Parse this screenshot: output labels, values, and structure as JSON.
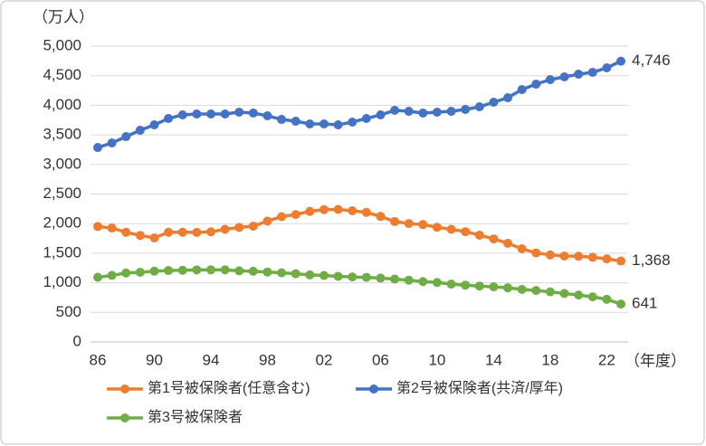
{
  "chart_data": {
    "type": "line",
    "y_axis_label": "（万人）",
    "x_axis_label": "（年度）",
    "categories": [
      "86",
      null,
      null,
      null,
      "90",
      null,
      null,
      null,
      "94",
      null,
      null,
      null,
      "98",
      null,
      null,
      null,
      "02",
      null,
      null,
      null,
      "06",
      null,
      null,
      null,
      "10",
      null,
      null,
      null,
      "14",
      null,
      null,
      null,
      "18",
      null,
      null,
      null,
      "22",
      null
    ],
    "series": [
      {
        "name": "第1号被保険者(任意含む)",
        "color": "#ed7d31",
        "values": [
          1951,
          1926,
          1854,
          1801,
          1759,
          1854,
          1854,
          1852,
          1862,
          1904,
          1936,
          1958,
          2043,
          2118,
          2154,
          2207,
          2237,
          2240,
          2217,
          2190,
          2123,
          2035,
          2001,
          1985,
          1938,
          1904,
          1864,
          1805,
          1742,
          1668,
          1575,
          1505,
          1471,
          1453,
          1449,
          1431,
          1405,
          1368
        ],
        "value_labels": [
          null,
          null,
          null,
          null,
          null,
          null,
          null,
          null,
          null,
          null,
          null,
          null,
          null,
          null,
          null,
          null,
          null,
          null,
          null,
          null,
          null,
          null,
          null,
          null,
          null,
          null,
          null,
          null,
          null,
          null,
          null,
          null,
          null,
          null,
          null,
          null,
          null,
          "1,368"
        ]
      },
      {
        "name": "第2号被保険者(共済/厚年)",
        "color": "#4472c4",
        "values": [
          3287,
          3364,
          3471,
          3578,
          3670,
          3777,
          3838,
          3853,
          3853,
          3853,
          3884,
          3869,
          3823,
          3761,
          3731,
          3685,
          3685,
          3670,
          3716,
          3777,
          3838,
          3914,
          3899,
          3869,
          3884,
          3899,
          3930,
          3975,
          4052,
          4128,
          4266,
          4358,
          4434,
          4480,
          4526,
          4557,
          4633,
          4746
        ],
        "value_labels": [
          null,
          null,
          null,
          null,
          null,
          null,
          null,
          null,
          null,
          null,
          null,
          null,
          null,
          null,
          null,
          null,
          null,
          null,
          null,
          null,
          null,
          null,
          null,
          null,
          null,
          null,
          null,
          null,
          null,
          null,
          null,
          null,
          null,
          null,
          null,
          null,
          null,
          "4,746"
        ]
      },
      {
        "name": "第3号被保険者",
        "color": "#70ad47",
        "values": [
          1093,
          1125,
          1166,
          1178,
          1196,
          1207,
          1212,
          1218,
          1219,
          1220,
          1202,
          1195,
          1182,
          1169,
          1153,
          1133,
          1124,
          1109,
          1099,
          1092,
          1079,
          1063,
          1044,
          1021,
          1005,
          978,
          960,
          945,
          932,
          915,
          889,
          870,
          847,
          820,
          793,
          763,
          721,
          641
        ],
        "value_labels": [
          null,
          null,
          null,
          null,
          null,
          null,
          null,
          null,
          null,
          null,
          null,
          null,
          null,
          null,
          null,
          null,
          null,
          null,
          null,
          null,
          null,
          null,
          null,
          null,
          null,
          null,
          null,
          null,
          null,
          null,
          null,
          null,
          null,
          null,
          null,
          null,
          null,
          "641"
        ]
      }
    ],
    "ylim": [
      0,
      5000
    ],
    "yticks": [
      0,
      500,
      {
        "value": 1000,
        "label": "1,000"
      },
      {
        "value": 1500,
        "label": "1,500"
      },
      {
        "value": 2000,
        "label": "2,000"
      },
      {
        "value": 2500,
        "label": "2,500"
      },
      {
        "value": 3000,
        "label": "3,000"
      },
      {
        "value": 3500,
        "label": "3,500"
      },
      {
        "value": 4000,
        "label": "4,000"
      },
      {
        "value": 4500,
        "label": "4,500"
      },
      {
        "value": 5000,
        "label": "5,000"
      }
    ],
    "grid": true
  }
}
